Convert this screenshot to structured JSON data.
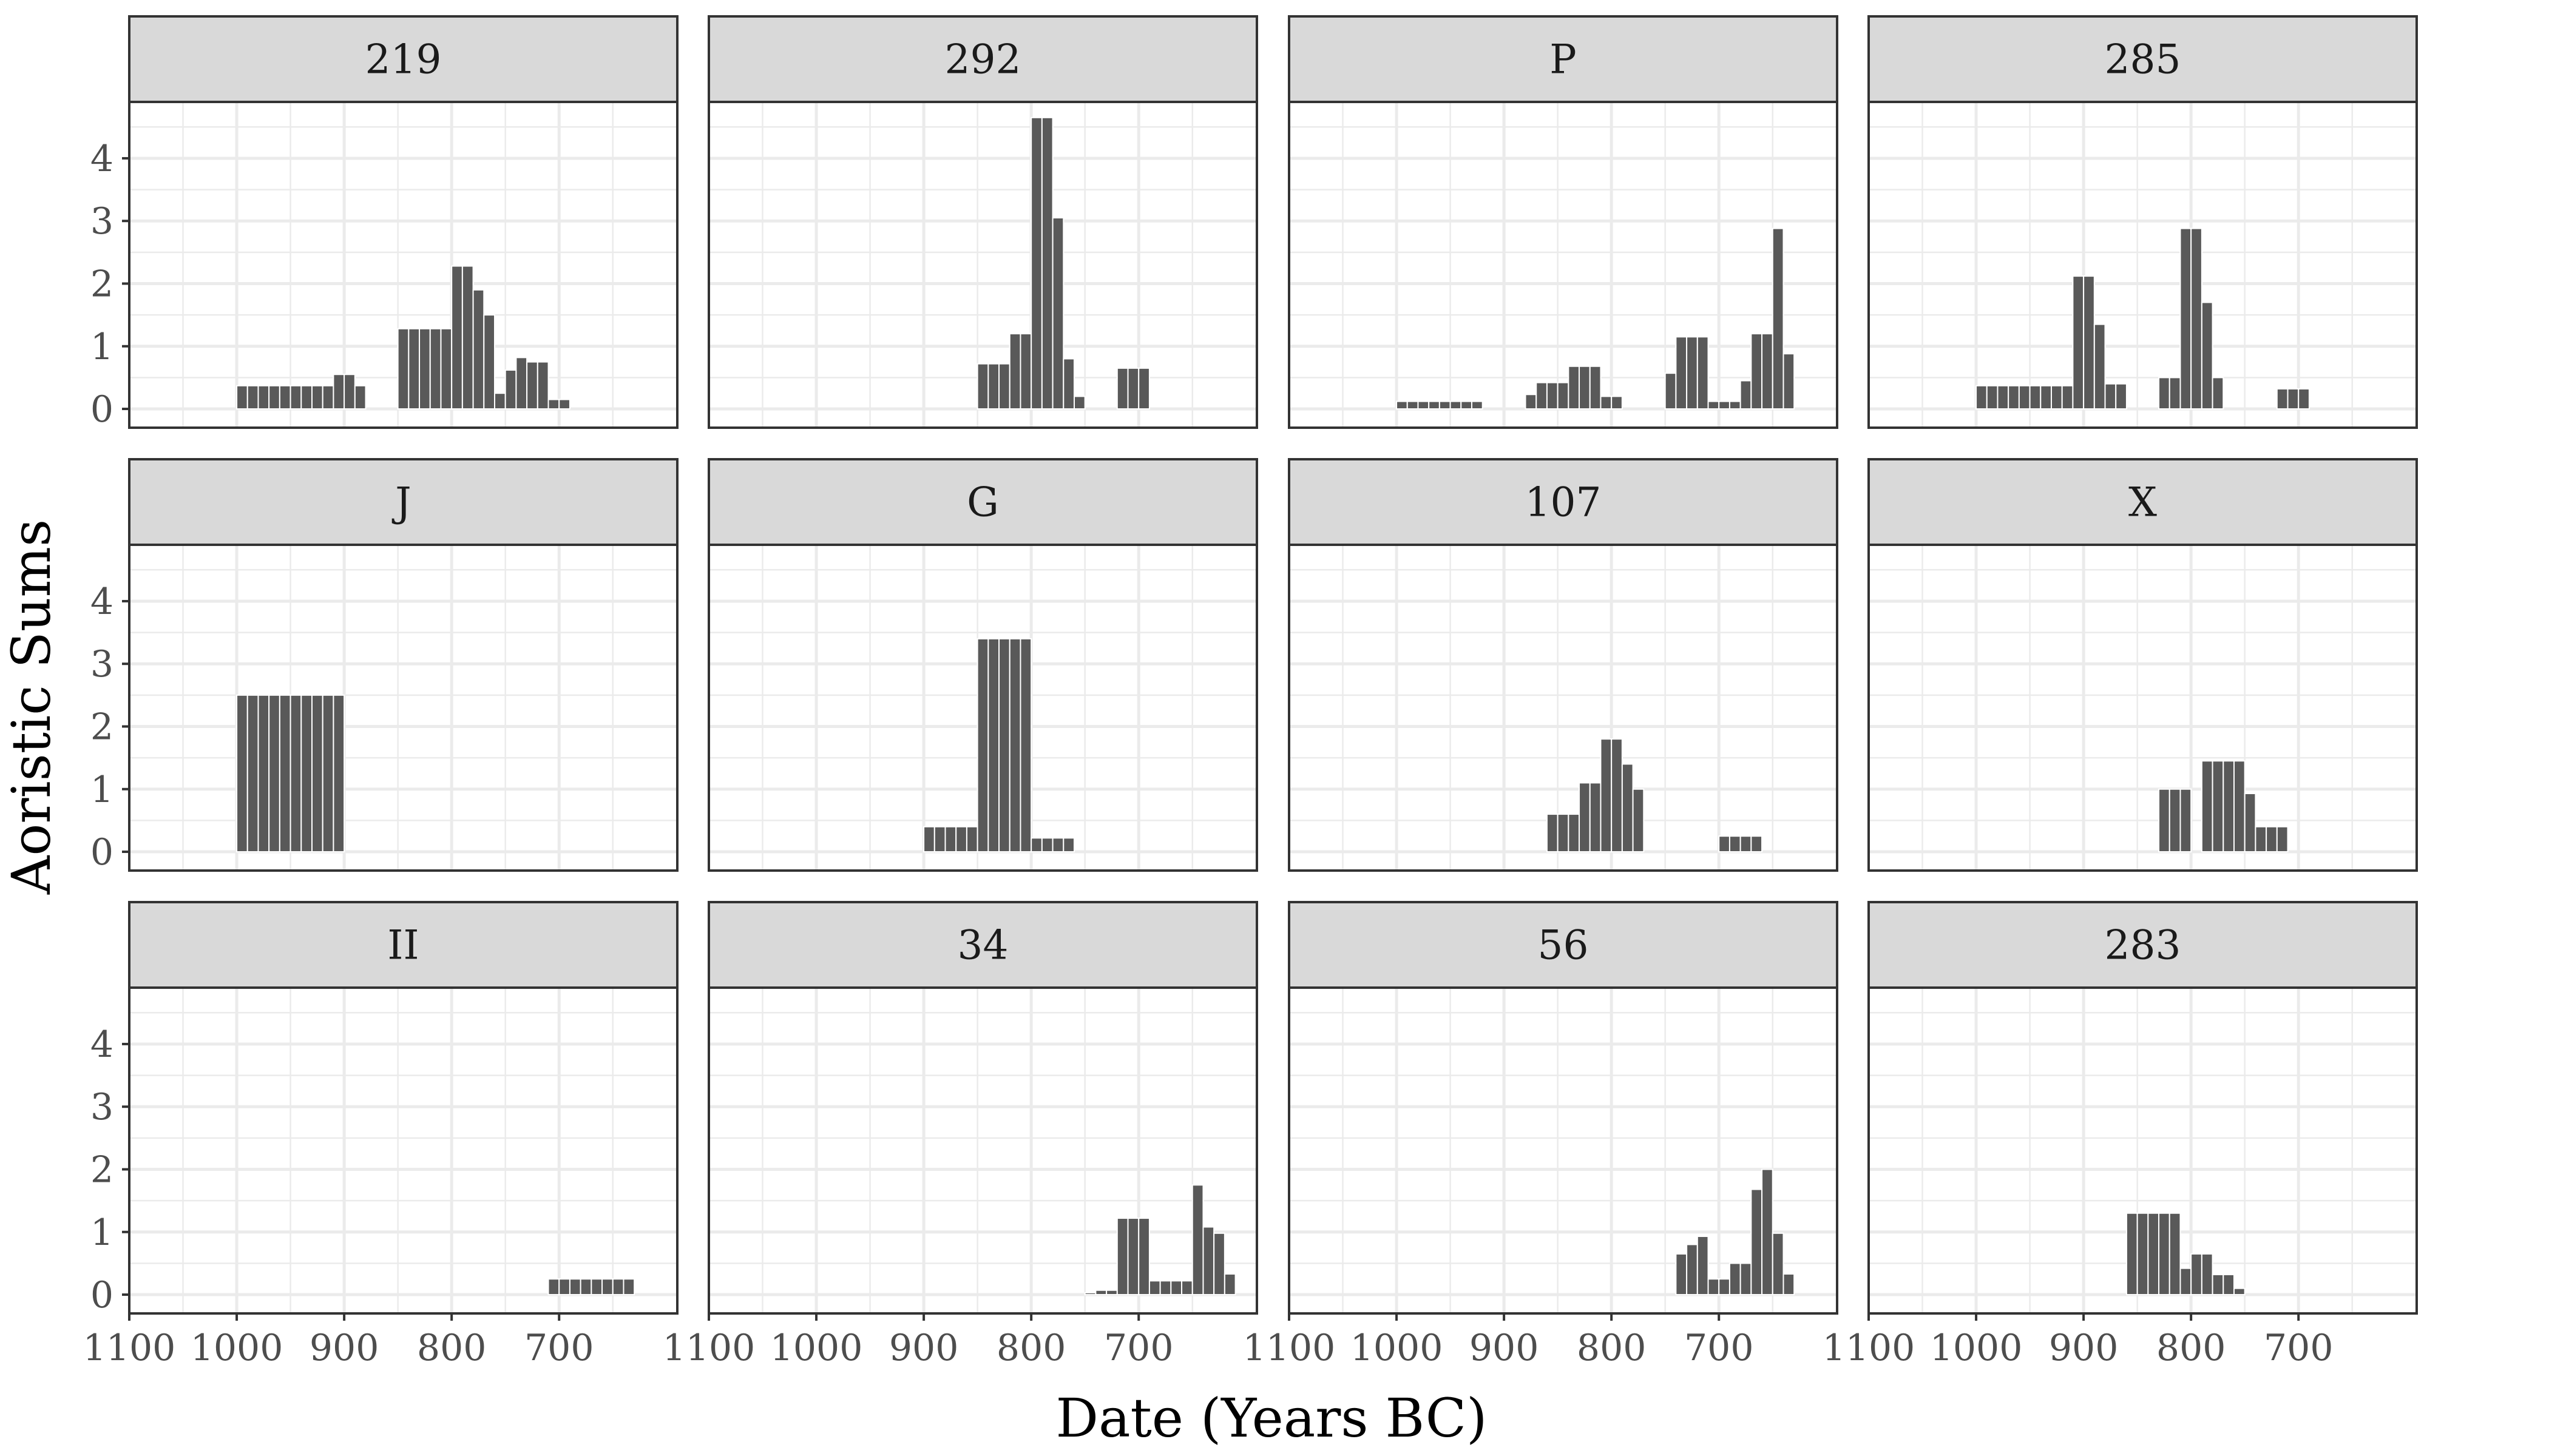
{
  "chart_data": {
    "type": "bar",
    "facet_layout": "4 columns x 3 rows",
    "grid": true,
    "xlabel": "Date (Years BC)",
    "ylabel": "Aoristic Sums",
    "x_axis_reversed": true,
    "xlim": [
      1100,
      590
    ],
    "ylim": [
      -0.3,
      4.9
    ],
    "x_ticks": [
      1100,
      1000,
      900,
      800,
      700
    ],
    "y_ticks": [
      0,
      1,
      2,
      3,
      4
    ],
    "bin_width_years": 10,
    "colors": {
      "bar": "#595959",
      "strip_background": "#d9d9d9",
      "panel_border": "#333333",
      "grid": "#ebebeb"
    },
    "facets": [
      {
        "title": "219",
        "bars": [
          {
            "x": 995,
            "y": 0.37
          },
          {
            "x": 985,
            "y": 0.37
          },
          {
            "x": 975,
            "y": 0.37
          },
          {
            "x": 965,
            "y": 0.37
          },
          {
            "x": 955,
            "y": 0.37
          },
          {
            "x": 945,
            "y": 0.37
          },
          {
            "x": 935,
            "y": 0.37
          },
          {
            "x": 925,
            "y": 0.37
          },
          {
            "x": 915,
            "y": 0.37
          },
          {
            "x": 905,
            "y": 0.55
          },
          {
            "x": 895,
            "y": 0.55
          },
          {
            "x": 885,
            "y": 0.37
          },
          {
            "x": 845,
            "y": 1.28
          },
          {
            "x": 835,
            "y": 1.28
          },
          {
            "x": 825,
            "y": 1.28
          },
          {
            "x": 815,
            "y": 1.28
          },
          {
            "x": 805,
            "y": 1.28
          },
          {
            "x": 795,
            "y": 2.28
          },
          {
            "x": 785,
            "y": 2.28
          },
          {
            "x": 775,
            "y": 1.9
          },
          {
            "x": 765,
            "y": 1.5
          },
          {
            "x": 755,
            "y": 0.25
          },
          {
            "x": 745,
            "y": 0.62
          },
          {
            "x": 735,
            "y": 0.82
          },
          {
            "x": 725,
            "y": 0.75
          },
          {
            "x": 715,
            "y": 0.75
          },
          {
            "x": 705,
            "y": 0.15
          },
          {
            "x": 695,
            "y": 0.15
          }
        ]
      },
      {
        "title": "292",
        "bars": [
          {
            "x": 845,
            "y": 0.72
          },
          {
            "x": 835,
            "y": 0.72
          },
          {
            "x": 825,
            "y": 0.72
          },
          {
            "x": 815,
            "y": 1.2
          },
          {
            "x": 805,
            "y": 1.2
          },
          {
            "x": 795,
            "y": 4.65
          },
          {
            "x": 785,
            "y": 4.65
          },
          {
            "x": 775,
            "y": 3.05
          },
          {
            "x": 765,
            "y": 0.8
          },
          {
            "x": 755,
            "y": 0.2
          },
          {
            "x": 715,
            "y": 0.65
          },
          {
            "x": 705,
            "y": 0.65
          },
          {
            "x": 695,
            "y": 0.65
          }
        ]
      },
      {
        "title": "P",
        "bars": [
          {
            "x": 995,
            "y": 0.12
          },
          {
            "x": 985,
            "y": 0.12
          },
          {
            "x": 975,
            "y": 0.12
          },
          {
            "x": 965,
            "y": 0.12
          },
          {
            "x": 955,
            "y": 0.12
          },
          {
            "x": 945,
            "y": 0.12
          },
          {
            "x": 935,
            "y": 0.12
          },
          {
            "x": 925,
            "y": 0.12
          },
          {
            "x": 875,
            "y": 0.23
          },
          {
            "x": 865,
            "y": 0.42
          },
          {
            "x": 855,
            "y": 0.42
          },
          {
            "x": 845,
            "y": 0.42
          },
          {
            "x": 835,
            "y": 0.68
          },
          {
            "x": 825,
            "y": 0.68
          },
          {
            "x": 815,
            "y": 0.68
          },
          {
            "x": 805,
            "y": 0.2
          },
          {
            "x": 795,
            "y": 0.2
          },
          {
            "x": 745,
            "y": 0.57
          },
          {
            "x": 735,
            "y": 1.15
          },
          {
            "x": 725,
            "y": 1.15
          },
          {
            "x": 715,
            "y": 1.15
          },
          {
            "x": 705,
            "y": 0.12
          },
          {
            "x": 695,
            "y": 0.12
          },
          {
            "x": 685,
            "y": 0.12
          },
          {
            "x": 675,
            "y": 0.45
          },
          {
            "x": 665,
            "y": 1.2
          },
          {
            "x": 655,
            "y": 1.2
          },
          {
            "x": 645,
            "y": 2.88
          },
          {
            "x": 635,
            "y": 0.88
          }
        ]
      },
      {
        "title": "285",
        "bars": [
          {
            "x": 995,
            "y": 0.37
          },
          {
            "x": 985,
            "y": 0.37
          },
          {
            "x": 975,
            "y": 0.37
          },
          {
            "x": 965,
            "y": 0.37
          },
          {
            "x": 955,
            "y": 0.37
          },
          {
            "x": 945,
            "y": 0.37
          },
          {
            "x": 935,
            "y": 0.37
          },
          {
            "x": 925,
            "y": 0.37
          },
          {
            "x": 915,
            "y": 0.37
          },
          {
            "x": 905,
            "y": 2.12
          },
          {
            "x": 895,
            "y": 2.12
          },
          {
            "x": 885,
            "y": 1.35
          },
          {
            "x": 875,
            "y": 0.4
          },
          {
            "x": 865,
            "y": 0.4
          },
          {
            "x": 825,
            "y": 0.5
          },
          {
            "x": 815,
            "y": 0.5
          },
          {
            "x": 805,
            "y": 2.88
          },
          {
            "x": 795,
            "y": 2.88
          },
          {
            "x": 785,
            "y": 1.7
          },
          {
            "x": 775,
            "y": 0.5
          },
          {
            "x": 715,
            "y": 0.32
          },
          {
            "x": 705,
            "y": 0.32
          },
          {
            "x": 695,
            "y": 0.32
          }
        ]
      },
      {
        "title": "J",
        "bars": [
          {
            "x": 995,
            "y": 2.5
          },
          {
            "x": 985,
            "y": 2.5
          },
          {
            "x": 975,
            "y": 2.5
          },
          {
            "x": 965,
            "y": 2.5
          },
          {
            "x": 955,
            "y": 2.5
          },
          {
            "x": 945,
            "y": 2.5
          },
          {
            "x": 935,
            "y": 2.5
          },
          {
            "x": 925,
            "y": 2.5
          },
          {
            "x": 915,
            "y": 2.5
          },
          {
            "x": 905,
            "y": 2.5
          }
        ]
      },
      {
        "title": "G",
        "bars": [
          {
            "x": 895,
            "y": 0.4
          },
          {
            "x": 885,
            "y": 0.4
          },
          {
            "x": 875,
            "y": 0.4
          },
          {
            "x": 865,
            "y": 0.4
          },
          {
            "x": 855,
            "y": 0.4
          },
          {
            "x": 845,
            "y": 3.4
          },
          {
            "x": 835,
            "y": 3.4
          },
          {
            "x": 825,
            "y": 3.4
          },
          {
            "x": 815,
            "y": 3.4
          },
          {
            "x": 805,
            "y": 3.4
          },
          {
            "x": 795,
            "y": 0.22
          },
          {
            "x": 785,
            "y": 0.22
          },
          {
            "x": 775,
            "y": 0.22
          },
          {
            "x": 765,
            "y": 0.22
          }
        ]
      },
      {
        "title": "107",
        "bars": [
          {
            "x": 855,
            "y": 0.6
          },
          {
            "x": 845,
            "y": 0.6
          },
          {
            "x": 835,
            "y": 0.6
          },
          {
            "x": 825,
            "y": 1.1
          },
          {
            "x": 815,
            "y": 1.1
          },
          {
            "x": 805,
            "y": 1.8
          },
          {
            "x": 795,
            "y": 1.8
          },
          {
            "x": 785,
            "y": 1.4
          },
          {
            "x": 775,
            "y": 1.0
          },
          {
            "x": 695,
            "y": 0.25
          },
          {
            "x": 685,
            "y": 0.25
          },
          {
            "x": 675,
            "y": 0.25
          },
          {
            "x": 665,
            "y": 0.25
          }
        ]
      },
      {
        "title": "X",
        "bars": [
          {
            "x": 825,
            "y": 1.0
          },
          {
            "x": 815,
            "y": 1.0
          },
          {
            "x": 805,
            "y": 1.0
          },
          {
            "x": 785,
            "y": 1.45
          },
          {
            "x": 775,
            "y": 1.45
          },
          {
            "x": 765,
            "y": 1.45
          },
          {
            "x": 755,
            "y": 1.45
          },
          {
            "x": 745,
            "y": 0.93
          },
          {
            "x": 735,
            "y": 0.4
          },
          {
            "x": 725,
            "y": 0.4
          },
          {
            "x": 715,
            "y": 0.4
          }
        ]
      },
      {
        "title": "II",
        "bars": [
          {
            "x": 705,
            "y": 0.25
          },
          {
            "x": 695,
            "y": 0.25
          },
          {
            "x": 685,
            "y": 0.25
          },
          {
            "x": 675,
            "y": 0.25
          },
          {
            "x": 665,
            "y": 0.25
          },
          {
            "x": 655,
            "y": 0.25
          },
          {
            "x": 645,
            "y": 0.25
          },
          {
            "x": 635,
            "y": 0.25
          }
        ]
      },
      {
        "title": "34",
        "bars": [
          {
            "x": 745,
            "y": 0.03
          },
          {
            "x": 735,
            "y": 0.07
          },
          {
            "x": 725,
            "y": 0.07
          },
          {
            "x": 715,
            "y": 1.22
          },
          {
            "x": 705,
            "y": 1.22
          },
          {
            "x": 695,
            "y": 1.22
          },
          {
            "x": 685,
            "y": 0.22
          },
          {
            "x": 675,
            "y": 0.22
          },
          {
            "x": 665,
            "y": 0.22
          },
          {
            "x": 655,
            "y": 0.22
          },
          {
            "x": 645,
            "y": 1.75
          },
          {
            "x": 635,
            "y": 1.08
          },
          {
            "x": 625,
            "y": 0.98
          },
          {
            "x": 615,
            "y": 0.33
          }
        ]
      },
      {
        "title": "56",
        "bars": [
          {
            "x": 735,
            "y": 0.65
          },
          {
            "x": 725,
            "y": 0.8
          },
          {
            "x": 715,
            "y": 0.93
          },
          {
            "x": 705,
            "y": 0.25
          },
          {
            "x": 695,
            "y": 0.25
          },
          {
            "x": 685,
            "y": 0.5
          },
          {
            "x": 675,
            "y": 0.5
          },
          {
            "x": 665,
            "y": 1.68
          },
          {
            "x": 655,
            "y": 2.0
          },
          {
            "x": 645,
            "y": 0.98
          },
          {
            "x": 635,
            "y": 0.33
          }
        ]
      },
      {
        "title": "283",
        "bars": [
          {
            "x": 855,
            "y": 1.3
          },
          {
            "x": 845,
            "y": 1.3
          },
          {
            "x": 835,
            "y": 1.3
          },
          {
            "x": 825,
            "y": 1.3
          },
          {
            "x": 815,
            "y": 1.3
          },
          {
            "x": 805,
            "y": 0.42
          },
          {
            "x": 795,
            "y": 0.65
          },
          {
            "x": 785,
            "y": 0.65
          },
          {
            "x": 775,
            "y": 0.32
          },
          {
            "x": 765,
            "y": 0.32
          },
          {
            "x": 755,
            "y": 0.1
          }
        ]
      }
    ]
  }
}
